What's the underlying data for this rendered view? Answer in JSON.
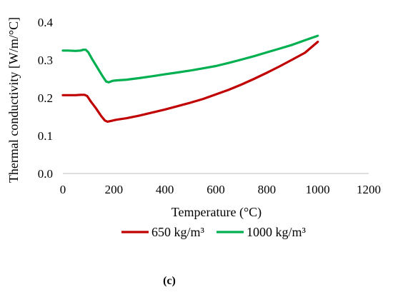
{
  "chart_data": {
    "type": "line",
    "xlabel": "Temperature (°C)",
    "ylabel": "Thermal conductivity [W/m/°C]",
    "xlim": [
      0,
      1200
    ],
    "ylim": [
      0,
      0.4
    ],
    "xticks": [
      "0",
      "200",
      "400",
      "600",
      "800",
      "1000",
      "1200"
    ],
    "yticks": [
      "0.0",
      "0.1",
      "0.2",
      "0.3",
      "0.4"
    ],
    "grid": false,
    "legend_position": "bottom",
    "series": [
      {
        "name": "650 kg/m³",
        "color": "#C00000",
        "points": [
          [
            0,
            0.207
          ],
          [
            20,
            0.207
          ],
          [
            50,
            0.207
          ],
          [
            70,
            0.208
          ],
          [
            85,
            0.208
          ],
          [
            95,
            0.205
          ],
          [
            110,
            0.19
          ],
          [
            130,
            0.172
          ],
          [
            150,
            0.152
          ],
          [
            165,
            0.14
          ],
          [
            175,
            0.137
          ],
          [
            190,
            0.139
          ],
          [
            210,
            0.142
          ],
          [
            250,
            0.146
          ],
          [
            300,
            0.153
          ],
          [
            350,
            0.161
          ],
          [
            400,
            0.169
          ],
          [
            450,
            0.178
          ],
          [
            500,
            0.187
          ],
          [
            550,
            0.197
          ],
          [
            600,
            0.209
          ],
          [
            650,
            0.221
          ],
          [
            700,
            0.235
          ],
          [
            750,
            0.25
          ],
          [
            800,
            0.266
          ],
          [
            850,
            0.283
          ],
          [
            900,
            0.301
          ],
          [
            950,
            0.319
          ],
          [
            1000,
            0.348
          ]
        ]
      },
      {
        "name": "1000 kg/m³",
        "color": "#00B050",
        "points": [
          [
            0,
            0.325
          ],
          [
            20,
            0.325
          ],
          [
            50,
            0.324
          ],
          [
            70,
            0.325
          ],
          [
            80,
            0.327
          ],
          [
            90,
            0.327
          ],
          [
            100,
            0.32
          ],
          [
            115,
            0.302
          ],
          [
            135,
            0.28
          ],
          [
            155,
            0.258
          ],
          [
            170,
            0.243
          ],
          [
            180,
            0.241
          ],
          [
            195,
            0.245
          ],
          [
            210,
            0.246
          ],
          [
            250,
            0.248
          ],
          [
            300,
            0.252
          ],
          [
            350,
            0.257
          ],
          [
            400,
            0.262
          ],
          [
            450,
            0.267
          ],
          [
            500,
            0.272
          ],
          [
            550,
            0.278
          ],
          [
            600,
            0.284
          ],
          [
            650,
            0.292
          ],
          [
            700,
            0.301
          ],
          [
            750,
            0.31
          ],
          [
            800,
            0.32
          ],
          [
            850,
            0.33
          ],
          [
            900,
            0.34
          ],
          [
            950,
            0.352
          ],
          [
            1000,
            0.364
          ]
        ]
      }
    ]
  },
  "caption": "(c)"
}
